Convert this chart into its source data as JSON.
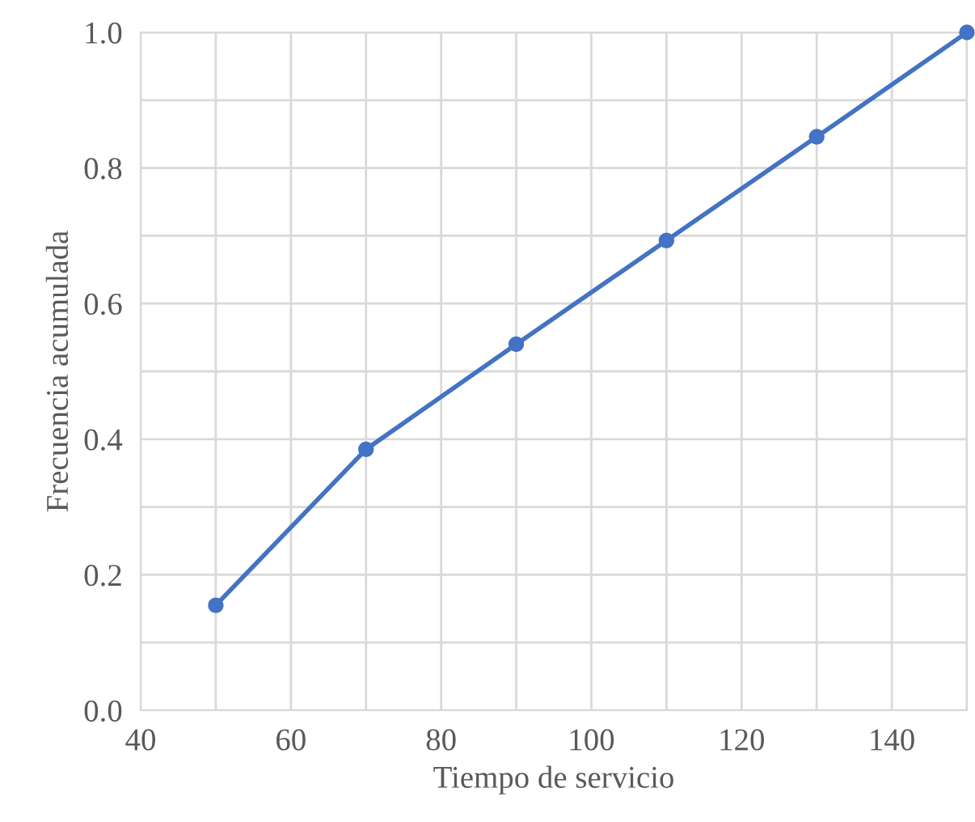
{
  "chart_data": {
    "type": "line",
    "xlabel": "Tiempo de servicio",
    "ylabel": "Frecuencia acumulada",
    "x": [
      50,
      70,
      90,
      110,
      130,
      150
    ],
    "series": [
      {
        "color": "#4472c4",
        "values": [
          0.155,
          0.385,
          0.54,
          0.693,
          0.846,
          1.0
        ]
      }
    ],
    "xlim": [
      40,
      150
    ],
    "ylim": [
      0,
      1.0
    ],
    "xticks": [
      40,
      {
        "value": 50,
        "label": null
      },
      60,
      {
        "value": 70,
        "label": null
      },
      80,
      {
        "value": 90,
        "label": null
      },
      100,
      {
        "value": 110,
        "label": null
      },
      120,
      {
        "value": 130,
        "label": null
      },
      140,
      {
        "value": 150,
        "label": null
      }
    ],
    "yticks": [
      "0.0",
      {
        "value": 0.1,
        "label": null
      },
      {
        "value": 0.2,
        "label": "0.2"
      },
      {
        "value": 0.3,
        "label": null
      },
      {
        "value": 0.4,
        "label": "0.4"
      },
      {
        "value": 0.5,
        "label": null
      },
      {
        "value": 0.6,
        "label": "0.6"
      },
      {
        "value": 0.7,
        "label": null
      },
      {
        "value": 0.8,
        "label": "0.8"
      },
      {
        "value": 0.9,
        "label": null
      },
      {
        "value": 1.0,
        "label": "1.0"
      }
    ],
    "grid": true,
    "marker": "circle",
    "line_style": "solid",
    "legend": false
  }
}
